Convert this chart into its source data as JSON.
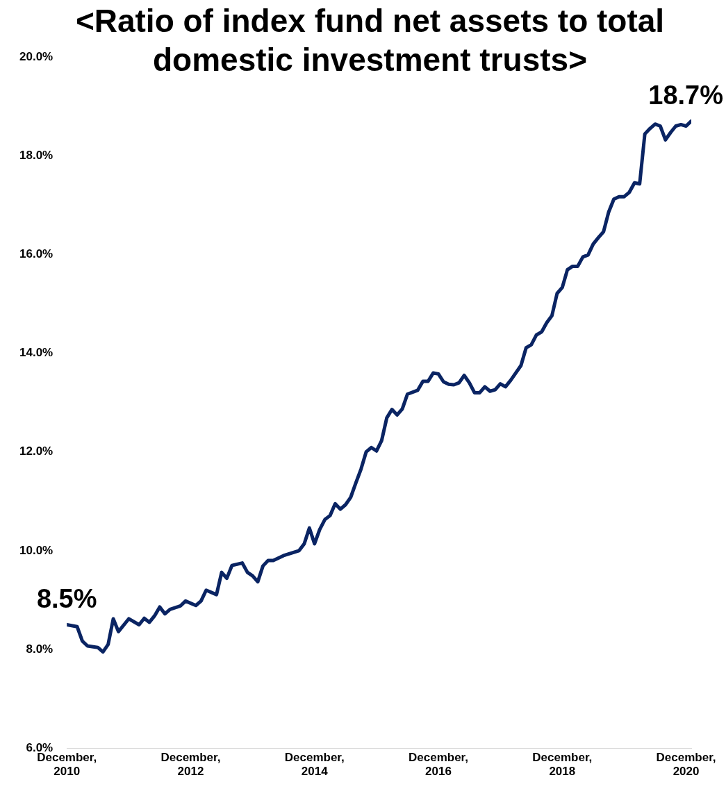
{
  "chart_data": {
    "type": "line",
    "title": "<Ratio of index fund net assets to total domestic investment trusts>",
    "x": [
      "2010-12",
      "2011-02",
      "2011-03",
      "2011-04",
      "2011-06",
      "2011-07",
      "2011-08",
      "2011-09",
      "2011-10",
      "2011-12",
      "2012-02",
      "2012-03",
      "2012-04",
      "2012-05",
      "2012-06",
      "2012-07",
      "2012-08",
      "2012-10",
      "2012-11",
      "2013-01",
      "2013-02",
      "2013-03",
      "2013-05",
      "2013-06",
      "2013-07",
      "2013-08",
      "2013-10",
      "2013-11",
      "2013-12",
      "2014-01",
      "2014-02",
      "2014-03",
      "2014-04",
      "2014-06",
      "2014-09",
      "2014-10",
      "2014-11",
      "2014-12",
      "2015-01",
      "2015-02",
      "2015-03",
      "2015-04",
      "2015-05",
      "2015-06",
      "2015-07",
      "2015-08",
      "2015-09",
      "2015-10",
      "2015-11",
      "2015-12",
      "2016-01",
      "2016-02",
      "2016-03",
      "2016-04",
      "2016-05",
      "2016-06",
      "2016-08",
      "2016-09",
      "2016-10",
      "2016-11",
      "2016-12",
      "2017-01",
      "2017-02",
      "2017-03",
      "2017-04",
      "2017-05",
      "2017-06",
      "2017-07",
      "2017-08",
      "2017-09",
      "2017-10",
      "2017-11",
      "2017-12",
      "2018-01",
      "2018-02",
      "2018-04",
      "2018-05",
      "2018-06",
      "2018-07",
      "2018-08",
      "2018-09",
      "2018-10",
      "2018-11",
      "2018-12",
      "2019-01",
      "2019-02",
      "2019-03",
      "2019-04",
      "2019-05",
      "2019-06",
      "2019-07",
      "2019-08",
      "2019-09",
      "2019-10",
      "2019-11",
      "2019-12",
      "2020-01",
      "2020-02",
      "2020-03",
      "2020-04",
      "2020-05",
      "2020-06",
      "2020-07",
      "2020-08",
      "2020-09",
      "2020-10",
      "2020-11",
      "2020-12",
      "2021-01"
    ],
    "series": [
      {
        "color": "#0a2463",
        "values": [
          8.5,
          8.46,
          8.17,
          8.07,
          8.04,
          7.95,
          8.1,
          8.62,
          8.36,
          8.62,
          8.5,
          8.63,
          8.55,
          8.68,
          8.86,
          8.72,
          8.81,
          8.88,
          8.98,
          8.89,
          8.98,
          9.2,
          9.11,
          9.56,
          9.44,
          9.7,
          9.75,
          9.56,
          9.49,
          9.37,
          9.69,
          9.8,
          9.8,
          9.9,
          10.0,
          10.14,
          10.46,
          10.14,
          10.43,
          10.63,
          10.71,
          10.95,
          10.84,
          10.93,
          11.08,
          11.37,
          11.65,
          12.0,
          12.09,
          12.02,
          12.23,
          12.69,
          12.86,
          12.75,
          12.87,
          13.17,
          13.25,
          13.43,
          13.43,
          13.6,
          13.58,
          13.42,
          13.37,
          13.36,
          13.4,
          13.55,
          13.4,
          13.2,
          13.2,
          13.32,
          13.23,
          13.26,
          13.38,
          13.32,
          13.45,
          13.75,
          14.11,
          14.17,
          14.37,
          14.43,
          14.62,
          14.76,
          15.21,
          15.33,
          15.69,
          15.76,
          15.76,
          15.95,
          15.99,
          16.21,
          16.34,
          16.46,
          16.86,
          17.12,
          17.17,
          17.17,
          17.26,
          17.45,
          17.43,
          18.44,
          18.55,
          18.64,
          18.6,
          18.32,
          18.47,
          18.6,
          18.63,
          18.6,
          18.7
        ]
      }
    ],
    "xticks": [
      {
        "value": "2010-12",
        "label": "December, 2010"
      },
      {
        "value": "2012-12",
        "label": "December, 2012"
      },
      {
        "value": "2014-12",
        "label": "December, 2014"
      },
      {
        "value": "2016-12",
        "label": "December, 2016"
      },
      {
        "value": "2018-12",
        "label": "December, 2018"
      },
      {
        "value": "2020-12",
        "label": "December, 2020"
      }
    ],
    "xlim": [
      "2010-12",
      "2021-01"
    ],
    "ylim": [
      6,
      20
    ],
    "yticks": [
      {
        "value": 6,
        "label": "6.0%"
      },
      {
        "value": 8,
        "label": "8.0%"
      },
      {
        "value": 10,
        "label": "10.0%"
      },
      {
        "value": 12,
        "label": "12.0%"
      },
      {
        "value": 14,
        "label": "14.0%"
      },
      {
        "value": 16,
        "label": "16.0%"
      },
      {
        "value": 18,
        "label": "18.0%"
      },
      {
        "value": 20,
        "label": "20.0%"
      }
    ],
    "grid": false,
    "legend": false,
    "marker": "none",
    "line_style": "solid",
    "annotations": [
      {
        "text": "8.5%",
        "x": "2010-12",
        "y": 8.5
      },
      {
        "text": "18.7%",
        "x": "2021-01",
        "y": 18.7
      }
    ]
  }
}
